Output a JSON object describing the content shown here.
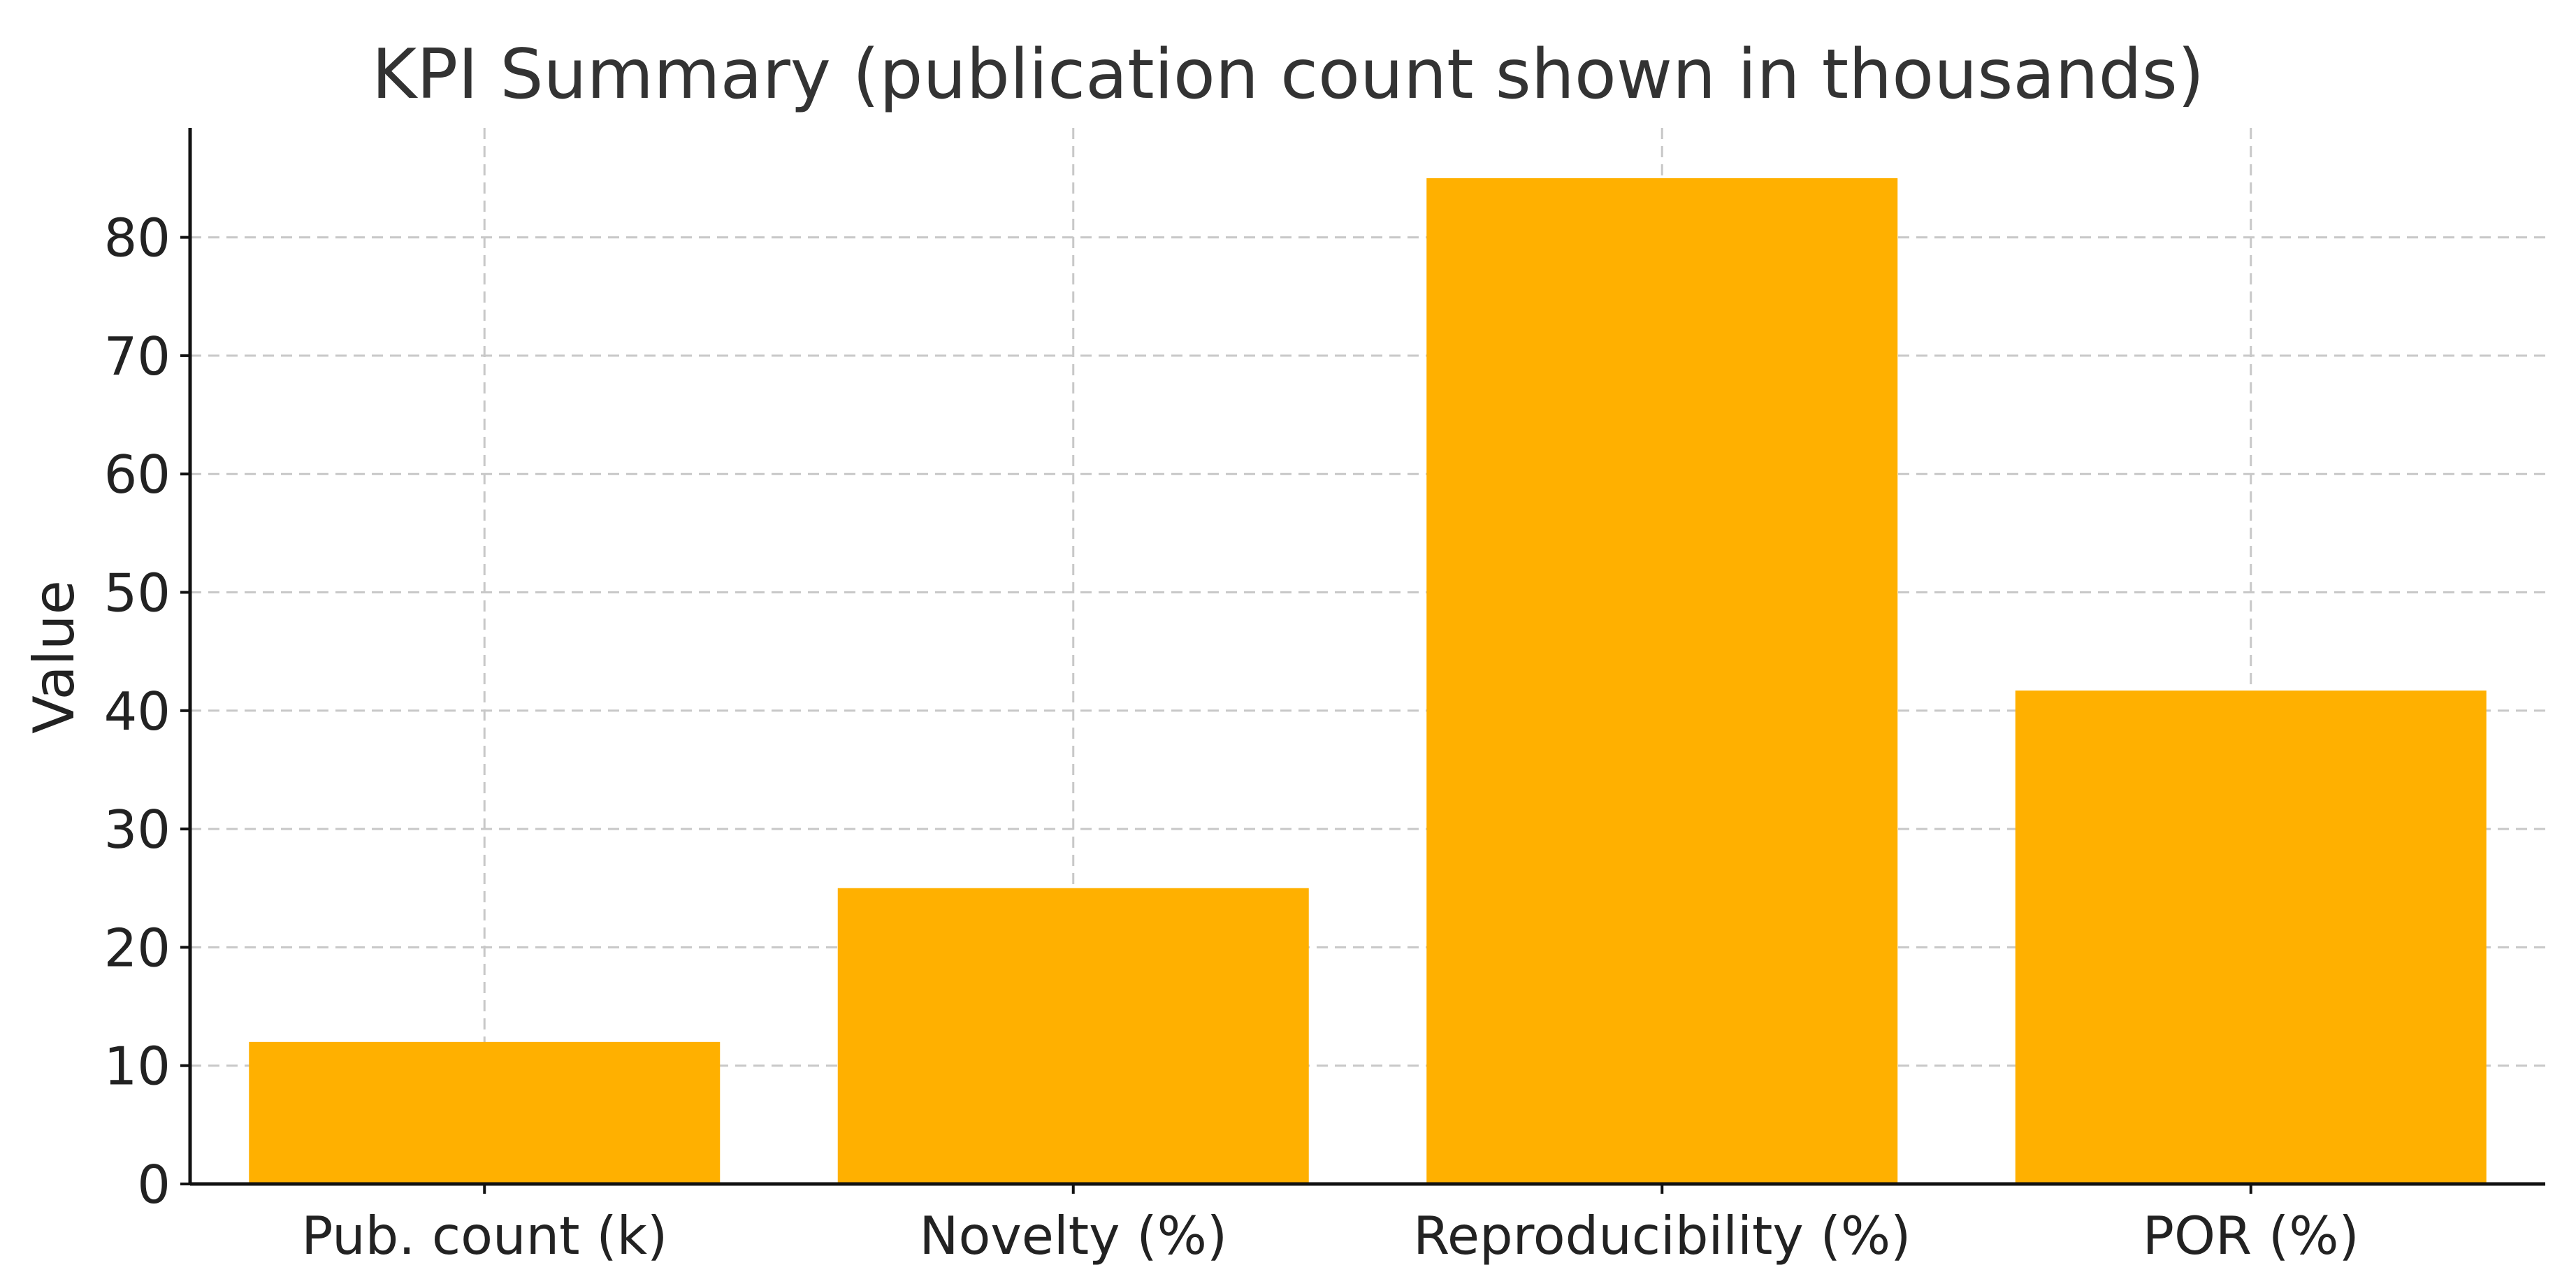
{
  "chart_data": {
    "type": "bar",
    "title": "KPI Summary (publication count shown in thousands)",
    "xlabel": "",
    "ylabel": "Value",
    "categories": [
      "Pub. count (k)",
      "Novelty (%)",
      "Reproducibility (%)",
      "POR (%)"
    ],
    "values": [
      12,
      25,
      85,
      41.7
    ],
    "ylim": [
      0,
      89.25
    ],
    "yticks": [
      0,
      10,
      20,
      30,
      40,
      50,
      60,
      70,
      80
    ],
    "bar_color": "#FFB000",
    "grid": true,
    "legend": "none"
  }
}
